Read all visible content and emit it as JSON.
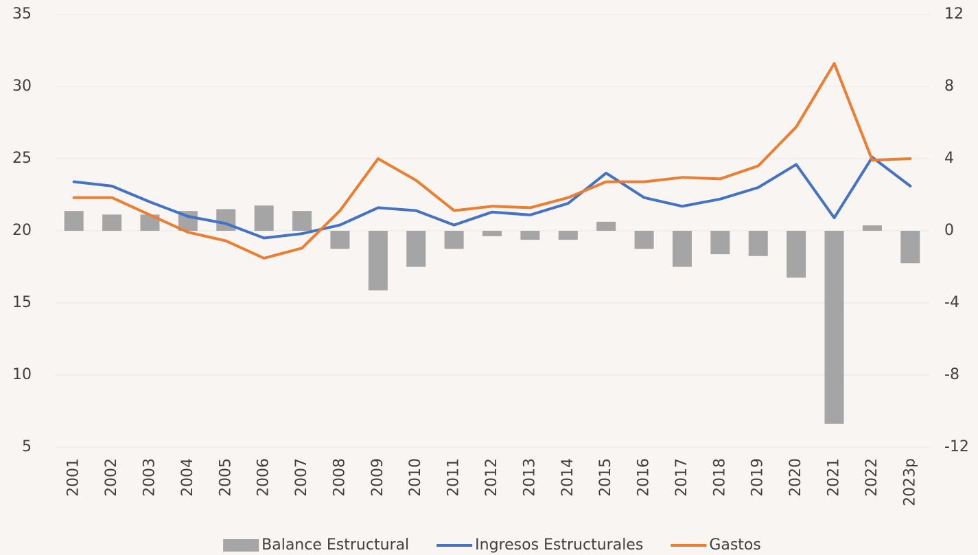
{
  "chart_data": {
    "type": "bar-line",
    "categories": [
      "2001",
      "2002",
      "2003",
      "2004",
      "2005",
      "2006",
      "2007",
      "2008",
      "2009",
      "2010",
      "2011",
      "2012",
      "2013",
      "2014",
      "2015",
      "2016",
      "2017",
      "2018",
      "2019",
      "2020",
      "2021",
      "2022",
      "2023p"
    ],
    "series": [
      {
        "name": "Balance Estructural",
        "type": "bar",
        "axis": "y2",
        "color": "#a5a5a5",
        "values": [
          1.1,
          0.9,
          0.9,
          1.1,
          1.2,
          1.4,
          1.1,
          -1.0,
          -3.3,
          -2.0,
          -1.0,
          -0.3,
          -0.5,
          -0.5,
          0.5,
          -1.0,
          -2.0,
          -1.3,
          -1.4,
          -2.6,
          -10.7,
          0.3,
          -1.8
        ]
      },
      {
        "name": "Ingresos Estructurales",
        "type": "line",
        "axis": "y",
        "color": "#4472c4",
        "values": [
          23.4,
          23.1,
          22.0,
          21.0,
          20.5,
          19.5,
          19.8,
          20.4,
          21.6,
          21.4,
          20.4,
          21.3,
          21.1,
          21.9,
          24.0,
          22.3,
          21.7,
          22.2,
          23.0,
          24.6,
          20.9,
          25.1,
          23.1
        ]
      },
      {
        "name": "Gastos",
        "type": "line",
        "axis": "y",
        "color": "#ed7d31",
        "values": [
          22.3,
          22.3,
          21.1,
          19.9,
          19.3,
          18.1,
          18.8,
          21.4,
          25.0,
          23.5,
          21.4,
          21.7,
          21.6,
          22.3,
          23.4,
          23.4,
          23.7,
          23.6,
          24.5,
          27.2,
          31.6,
          24.9,
          25.0
        ]
      }
    ],
    "ylim": [
      5,
      35
    ],
    "yticks": [
      5,
      10,
      15,
      20,
      25,
      30,
      35
    ],
    "y2lim": [
      -12,
      12
    ],
    "y2ticks": [
      -12,
      -8,
      -4,
      0,
      4,
      8,
      12
    ],
    "grid": true,
    "legend": "bottom"
  }
}
